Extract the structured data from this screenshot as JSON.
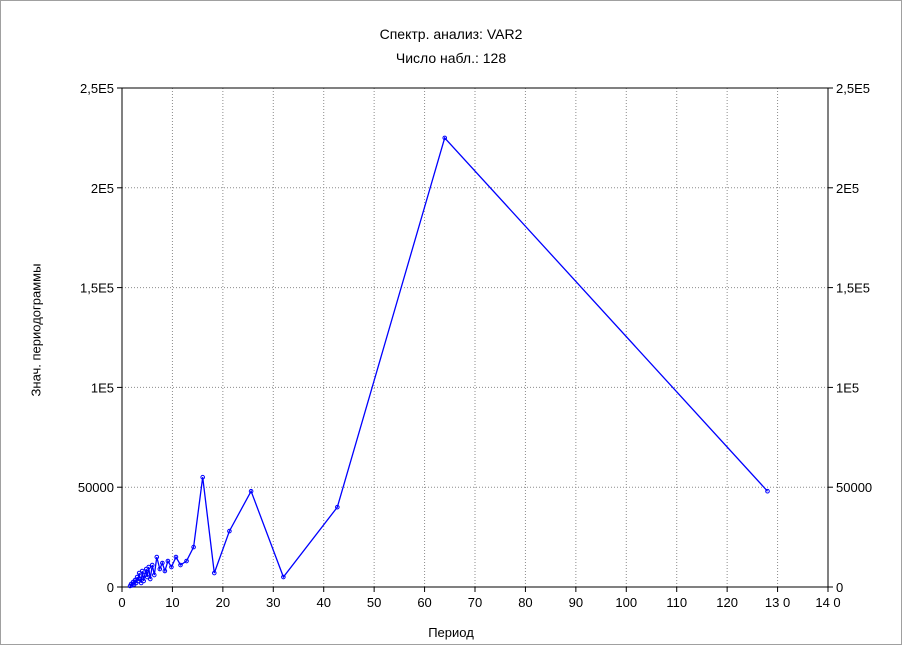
{
  "chart_data": {
    "type": "line",
    "title": "Спектр. анализ: VAR2",
    "subtitle": "Число набл.: 128",
    "xlabel": "Период",
    "ylabel": "Знач. периодограммы",
    "xlim": [
      0,
      140
    ],
    "ylim": [
      0,
      250000
    ],
    "x_ticks": [
      0,
      10,
      20,
      30,
      40,
      50,
      60,
      70,
      80,
      90,
      100,
      110,
      120,
      130,
      140
    ],
    "x_tick_labels": [
      "0",
      "10",
      "20",
      "30",
      "40",
      "50",
      "60",
      "70",
      "80",
      "90",
      "100",
      "110",
      "120",
      "13 0",
      "14 0"
    ],
    "y_ticks": [
      0,
      50000,
      100000,
      150000,
      200000,
      250000
    ],
    "y_tick_labels_left": [
      "0",
      "50000",
      "1E5",
      "1,5E5",
      "2E5",
      "2,5E5"
    ],
    "y_tick_labels_right": [
      "0",
      "50000",
      "1E5",
      "1,5E5",
      "2E5",
      "2,5E5"
    ],
    "grid": true,
    "line_color": "#0000ff",
    "series": [
      {
        "x": [
          1.6,
          1.8,
          2.0,
          2.2,
          2.4,
          2.6,
          2.8,
          3.0,
          3.2,
          3.4,
          3.6,
          3.8,
          4.0,
          4.3,
          4.5,
          4.8,
          5.0,
          5.3,
          5.6,
          6.0,
          6.4,
          6.9,
          7.5,
          8.0,
          8.5,
          9.1,
          9.8,
          10.7,
          11.6,
          12.8,
          14.2,
          16.0,
          18.3,
          21.3,
          25.6,
          32.0,
          42.7,
          64.0,
          128.0
        ],
        "y": [
          500,
          1500,
          800,
          2500,
          1200,
          3500,
          2000,
          5000,
          3000,
          7000,
          4000,
          2000,
          8000,
          3000,
          6000,
          9000,
          5000,
          10000,
          4000,
          11000,
          6000,
          15000,
          9000,
          12000,
          8000,
          13000,
          10000,
          15000,
          11000,
          13000,
          20000,
          55000,
          7000,
          28000,
          48000,
          5000,
          40000,
          225000,
          48000
        ]
      }
    ]
  }
}
